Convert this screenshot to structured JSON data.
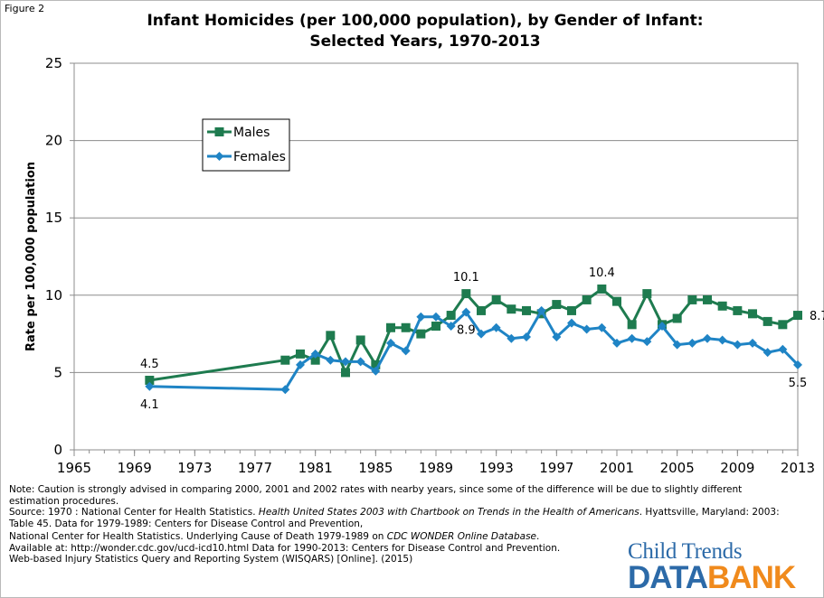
{
  "figure_label": "Figure 2",
  "title_line1": "Infant Homicides (per 100,000 population), by Gender of Infant:",
  "title_line2": "Selected Years, 1970-2013",
  "chart_data": {
    "type": "line",
    "title": "Infant Homicides (per 100,000 population), by Gender of Infant: Selected Years, 1970-2013",
    "ylabel": "Rate per 100,000 population",
    "xlabel": "",
    "xlim": [
      1965,
      2013
    ],
    "ylim": [
      0,
      25
    ],
    "x_ticks": [
      1965,
      1969,
      1973,
      1977,
      1981,
      1985,
      1989,
      1993,
      1997,
      2001,
      2005,
      2009,
      2013
    ],
    "y_ticks": [
      0,
      5,
      10,
      15,
      20,
      25
    ],
    "grid": "horizontal",
    "legend_position": "upper-left",
    "series": [
      {
        "name": "Males",
        "color": "#1e7b4f",
        "marker": "square",
        "x": [
          1970,
          1979,
          1980,
          1981,
          1982,
          1983,
          1984,
          1985,
          1986,
          1987,
          1988,
          1989,
          1990,
          1991,
          1992,
          1993,
          1994,
          1995,
          1996,
          1997,
          1998,
          1999,
          2000,
          2001,
          2002,
          2003,
          2004,
          2005,
          2006,
          2007,
          2008,
          2009,
          2010,
          2011,
          2012,
          2013
        ],
        "values": [
          4.5,
          5.8,
          6.2,
          5.8,
          7.4,
          5.0,
          7.1,
          5.5,
          7.9,
          7.9,
          7.5,
          8.0,
          8.7,
          10.1,
          9.0,
          9.7,
          9.1,
          9.0,
          8.8,
          9.4,
          9.0,
          9.7,
          10.4,
          9.6,
          8.1,
          10.1,
          8.1,
          8.5,
          9.7,
          9.7,
          9.3,
          9.0,
          8.8,
          8.3,
          8.1,
          8.7
        ]
      },
      {
        "name": "Females",
        "color": "#1f84c5",
        "marker": "diamond",
        "x": [
          1970,
          1979,
          1980,
          1981,
          1982,
          1983,
          1984,
          1985,
          1986,
          1987,
          1988,
          1989,
          1990,
          1991,
          1992,
          1993,
          1994,
          1995,
          1996,
          1997,
          1998,
          1999,
          2000,
          2001,
          2002,
          2003,
          2004,
          2005,
          2006,
          2007,
          2008,
          2009,
          2010,
          2011,
          2012,
          2013
        ],
        "values": [
          4.1,
          3.9,
          5.5,
          6.2,
          5.8,
          5.7,
          5.7,
          5.1,
          6.9,
          6.4,
          8.6,
          8.6,
          8.0,
          8.9,
          7.5,
          7.9,
          7.2,
          7.3,
          9.0,
          7.3,
          8.2,
          7.8,
          7.9,
          6.9,
          7.2,
          7.0,
          8.0,
          6.8,
          6.9,
          7.2,
          7.1,
          6.8,
          6.9,
          6.3,
          6.5,
          5.5
        ]
      }
    ],
    "annotations": [
      {
        "text": "4.5",
        "series": "Males",
        "x": 1970,
        "position": "above"
      },
      {
        "text": "4.1",
        "series": "Females",
        "x": 1970,
        "position": "below"
      },
      {
        "text": "10.1",
        "series": "Males",
        "x": 1991,
        "position": "above"
      },
      {
        "text": "8.9",
        "series": "Females",
        "x": 1991,
        "position": "below"
      },
      {
        "text": "10.4",
        "series": "Males",
        "x": 2000,
        "position": "above"
      },
      {
        "text": "8.7",
        "series": "Males",
        "x": 2013,
        "position": "right"
      },
      {
        "text": "5.5",
        "series": "Females",
        "x": 2013,
        "position": "below"
      }
    ]
  },
  "notes": {
    "note": "Note: Caution is strongly advised in comparing 2000, 2001 and 2002 rates with nearby years, since some of the difference will be due to slightly different estimation procedures.",
    "source_1": "Source:  1970 : National Center for Health Statistics. ",
    "source_1_italic": "Health United States 2003 with Chartbook on Trends in the Health of Americans",
    "source_1_rest": ". Hyattsville, Maryland: 2003: Table 45. Data for 1979-1989: Centers for Disease Control and Prevention,",
    "source_2": "National Center for Health Statistics. Underlying Cause of Death 1979-1989 on ",
    "source_2_italic": "CDC WONDER Online Database",
    "source_2_rest": ". Available at: http://wonder.cdc.gov/ucd-icd10.html Data for 1990-2013: Centers for Disease Control and Prevention.  Web-based Injury Statistics Query and Reporting System (WISQARS) [Online]. (2015)"
  },
  "brand": {
    "line1": "Child Trends",
    "line2a": "DATA",
    "line2b": "BANK"
  }
}
